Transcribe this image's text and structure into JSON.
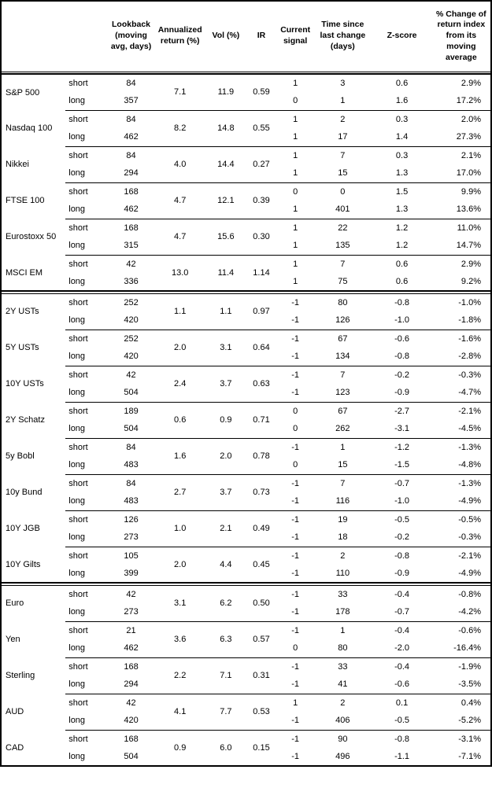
{
  "table": {
    "columns": [
      "",
      "",
      "Lookback (moving avg, days)",
      "Annualized return (%)",
      "Vol (%)",
      "IR",
      "Current signal",
      "Time since last change (days)",
      "Z-score",
      "% Change of return index from its moving average"
    ],
    "blocks": [
      [
        {
          "name": "S&P 500",
          "annualized_return": "7.1",
          "vol": "11.9",
          "ir": "0.59",
          "rows": [
            {
              "horizon": "short",
              "lookback": "84",
              "signal": "1",
              "days_since_change": "3",
              "z_score": "0.6",
              "pct_change": "2.9%"
            },
            {
              "horizon": "long",
              "lookback": "357",
              "signal": "0",
              "days_since_change": "1",
              "z_score": "1.6",
              "pct_change": "17.2%"
            }
          ]
        },
        {
          "name": "Nasdaq 100",
          "annualized_return": "8.2",
          "vol": "14.8",
          "ir": "0.55",
          "rows": [
            {
              "horizon": "short",
              "lookback": "84",
              "signal": "1",
              "days_since_change": "2",
              "z_score": "0.3",
              "pct_change": "2.0%"
            },
            {
              "horizon": "long",
              "lookback": "462",
              "signal": "1",
              "days_since_change": "17",
              "z_score": "1.4",
              "pct_change": "27.3%"
            }
          ]
        },
        {
          "name": "Nikkei",
          "annualized_return": "4.0",
          "vol": "14.4",
          "ir": "0.27",
          "rows": [
            {
              "horizon": "short",
              "lookback": "84",
              "signal": "1",
              "days_since_change": "7",
              "z_score": "0.3",
              "pct_change": "2.1%"
            },
            {
              "horizon": "long",
              "lookback": "294",
              "signal": "1",
              "days_since_change": "15",
              "z_score": "1.3",
              "pct_change": "17.0%"
            }
          ]
        },
        {
          "name": "FTSE 100",
          "annualized_return": "4.7",
          "vol": "12.1",
          "ir": "0.39",
          "rows": [
            {
              "horizon": "short",
              "lookback": "168",
              "signal": "0",
              "days_since_change": "0",
              "z_score": "1.5",
              "pct_change": "9.9%"
            },
            {
              "horizon": "long",
              "lookback": "462",
              "signal": "1",
              "days_since_change": "401",
              "z_score": "1.3",
              "pct_change": "13.6%"
            }
          ]
        },
        {
          "name": "Eurostoxx 50",
          "annualized_return": "4.7",
          "vol": "15.6",
          "ir": "0.30",
          "rows": [
            {
              "horizon": "short",
              "lookback": "168",
              "signal": "1",
              "days_since_change": "22",
              "z_score": "1.2",
              "pct_change": "11.0%"
            },
            {
              "horizon": "long",
              "lookback": "315",
              "signal": "1",
              "days_since_change": "135",
              "z_score": "1.2",
              "pct_change": "14.7%"
            }
          ]
        },
        {
          "name": "MSCI EM",
          "annualized_return": "13.0",
          "vol": "11.4",
          "ir": "1.14",
          "rows": [
            {
              "horizon": "short",
              "lookback": "42",
              "signal": "1",
              "days_since_change": "7",
              "z_score": "0.6",
              "pct_change": "2.9%"
            },
            {
              "horizon": "long",
              "lookback": "336",
              "signal": "1",
              "days_since_change": "75",
              "z_score": "0.6",
              "pct_change": "9.2%"
            }
          ]
        }
      ],
      [
        {
          "name": "2Y USTs",
          "annualized_return": "1.1",
          "vol": "1.1",
          "ir": "0.97",
          "rows": [
            {
              "horizon": "short",
              "lookback": "252",
              "signal": "-1",
              "days_since_change": "80",
              "z_score": "-0.8",
              "pct_change": "-1.0%"
            },
            {
              "horizon": "long",
              "lookback": "420",
              "signal": "-1",
              "days_since_change": "126",
              "z_score": "-1.0",
              "pct_change": "-1.8%"
            }
          ]
        },
        {
          "name": "5Y USTs",
          "annualized_return": "2.0",
          "vol": "3.1",
          "ir": "0.64",
          "rows": [
            {
              "horizon": "short",
              "lookback": "252",
              "signal": "-1",
              "days_since_change": "67",
              "z_score": "-0.6",
              "pct_change": "-1.6%"
            },
            {
              "horizon": "long",
              "lookback": "420",
              "signal": "-1",
              "days_since_change": "134",
              "z_score": "-0.8",
              "pct_change": "-2.8%"
            }
          ]
        },
        {
          "name": "10Y USTs",
          "annualized_return": "2.4",
          "vol": "3.7",
          "ir": "0.63",
          "rows": [
            {
              "horizon": "short",
              "lookback": "42",
              "signal": "-1",
              "days_since_change": "7",
              "z_score": "-0.2",
              "pct_change": "-0.3%"
            },
            {
              "horizon": "long",
              "lookback": "504",
              "signal": "-1",
              "days_since_change": "123",
              "z_score": "-0.9",
              "pct_change": "-4.7%"
            }
          ]
        },
        {
          "name": "2Y Schatz",
          "annualized_return": "0.6",
          "vol": "0.9",
          "ir": "0.71",
          "rows": [
            {
              "horizon": "short",
              "lookback": "189",
              "signal": "0",
              "days_since_change": "67",
              "z_score": "-2.7",
              "pct_change": "-2.1%"
            },
            {
              "horizon": "long",
              "lookback": "504",
              "signal": "0",
              "days_since_change": "262",
              "z_score": "-3.1",
              "pct_change": "-4.5%"
            }
          ]
        },
        {
          "name": "5y Bobl",
          "annualized_return": "1.6",
          "vol": "2.0",
          "ir": "0.78",
          "rows": [
            {
              "horizon": "short",
              "lookback": "84",
              "signal": "-1",
              "days_since_change": "1",
              "z_score": "-1.2",
              "pct_change": "-1.3%"
            },
            {
              "horizon": "long",
              "lookback": "483",
              "signal": "0",
              "days_since_change": "15",
              "z_score": "-1.5",
              "pct_change": "-4.8%"
            }
          ]
        },
        {
          "name": "10y Bund",
          "annualized_return": "2.7",
          "vol": "3.7",
          "ir": "0.73",
          "rows": [
            {
              "horizon": "short",
              "lookback": "84",
              "signal": "-1",
              "days_since_change": "7",
              "z_score": "-0.7",
              "pct_change": "-1.3%"
            },
            {
              "horizon": "long",
              "lookback": "483",
              "signal": "-1",
              "days_since_change": "116",
              "z_score": "-1.0",
              "pct_change": "-4.9%"
            }
          ]
        },
        {
          "name": "10Y JGB",
          "annualized_return": "1.0",
          "vol": "2.1",
          "ir": "0.49",
          "rows": [
            {
              "horizon": "short",
              "lookback": "126",
              "signal": "-1",
              "days_since_change": "19",
              "z_score": "-0.5",
              "pct_change": "-0.5%"
            },
            {
              "horizon": "long",
              "lookback": "273",
              "signal": "-1",
              "days_since_change": "18",
              "z_score": "-0.2",
              "pct_change": "-0.3%"
            }
          ]
        },
        {
          "name": "10Y Gilts",
          "annualized_return": "2.0",
          "vol": "4.4",
          "ir": "0.45",
          "rows": [
            {
              "horizon": "short",
              "lookback": "105",
              "signal": "-1",
              "days_since_change": "2",
              "z_score": "-0.8",
              "pct_change": "-2.1%"
            },
            {
              "horizon": "long",
              "lookback": "399",
              "signal": "-1",
              "days_since_change": "110",
              "z_score": "-0.9",
              "pct_change": "-4.9%"
            }
          ]
        }
      ],
      [
        {
          "name": "Euro",
          "annualized_return": "3.1",
          "vol": "6.2",
          "ir": "0.50",
          "rows": [
            {
              "horizon": "short",
              "lookback": "42",
              "signal": "-1",
              "days_since_change": "33",
              "z_score": "-0.4",
              "pct_change": "-0.8%"
            },
            {
              "horizon": "long",
              "lookback": "273",
              "signal": "-1",
              "days_since_change": "178",
              "z_score": "-0.7",
              "pct_change": "-4.2%"
            }
          ]
        },
        {
          "name": "Yen",
          "annualized_return": "3.6",
          "vol": "6.3",
          "ir": "0.57",
          "rows": [
            {
              "horizon": "short",
              "lookback": "21",
              "signal": "-1",
              "days_since_change": "1",
              "z_score": "-0.4",
              "pct_change": "-0.6%"
            },
            {
              "horizon": "long",
              "lookback": "462",
              "signal": "0",
              "days_since_change": "80",
              "z_score": "-2.0",
              "pct_change": "-16.4%"
            }
          ]
        },
        {
          "name": "Sterling",
          "annualized_return": "2.2",
          "vol": "7.1",
          "ir": "0.31",
          "rows": [
            {
              "horizon": "short",
              "lookback": "168",
              "signal": "-1",
              "days_since_change": "33",
              "z_score": "-0.4",
              "pct_change": "-1.9%"
            },
            {
              "horizon": "long",
              "lookback": "294",
              "signal": "-1",
              "days_since_change": "41",
              "z_score": "-0.6",
              "pct_change": "-3.5%"
            }
          ]
        },
        {
          "name": "AUD",
          "annualized_return": "4.1",
          "vol": "7.7",
          "ir": "0.53",
          "rows": [
            {
              "horizon": "short",
              "lookback": "42",
              "signal": "1",
              "days_since_change": "2",
              "z_score": "0.1",
              "pct_change": "0.4%"
            },
            {
              "horizon": "long",
              "lookback": "420",
              "signal": "-1",
              "days_since_change": "406",
              "z_score": "-0.5",
              "pct_change": "-5.2%"
            }
          ]
        },
        {
          "name": "CAD",
          "annualized_return": "0.9",
          "vol": "6.0",
          "ir": "0.15",
          "rows": [
            {
              "horizon": "short",
              "lookback": "168",
              "signal": "-1",
              "days_since_change": "90",
              "z_score": "-0.8",
              "pct_change": "-3.1%"
            },
            {
              "horizon": "long",
              "lookback": "504",
              "signal": "-1",
              "days_since_change": "496",
              "z_score": "-1.1",
              "pct_change": "-7.1%"
            }
          ]
        }
      ]
    ]
  },
  "colors": {
    "border": "#000000",
    "text": "#000000",
    "background": "#ffffff"
  }
}
